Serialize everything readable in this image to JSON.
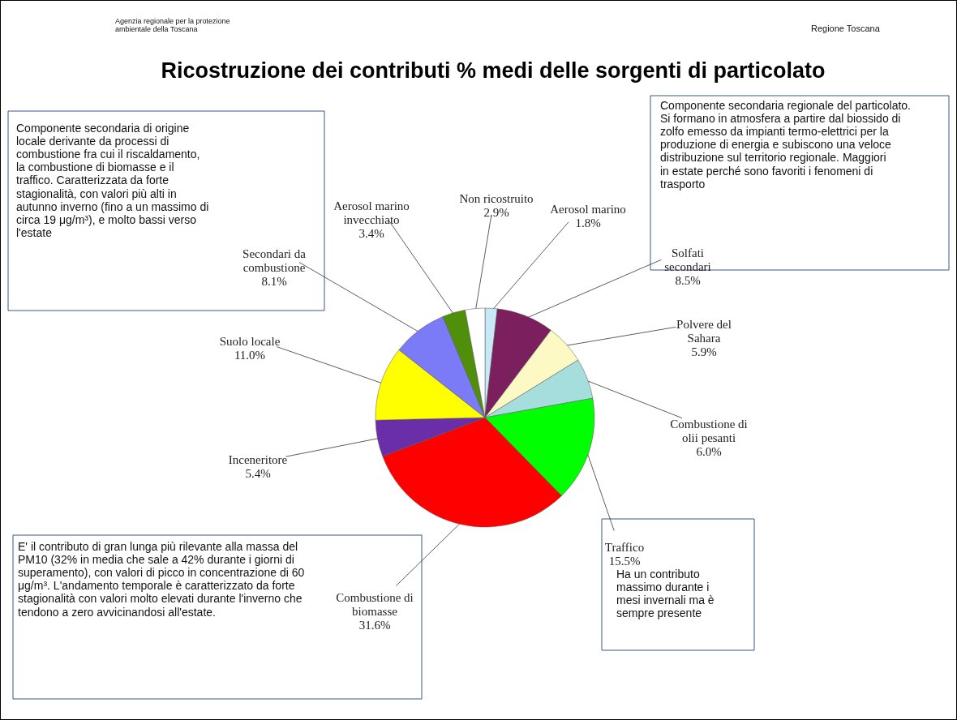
{
  "chart_data": {
    "type": "pie",
    "title": "Ricostruzione dei contributi % medi delle sorgenti di particolato",
    "categories": [
      "Aerosol marino",
      "Solfati secondari",
      "Polvere del Sahara",
      "Combustione di olii pesanti",
      "Traffico",
      "Combustione di biomasse",
      "Inceneritore",
      "Suolo locale",
      "Secondari da combustione",
      "Aerosol marino invecchiato",
      "Non ricostruito"
    ],
    "values": [
      1.8,
      8.5,
      5.9,
      6.0,
      15.5,
      31.6,
      5.4,
      11.0,
      8.1,
      3.4,
      2.9
    ],
    "value_labels": [
      "1.8%",
      "8.5%",
      "5.9%",
      "6.0%",
      "15.5%",
      "31.6%",
      "5.4%",
      "11.0%",
      "8.1%",
      "3.4%",
      "2.9%"
    ],
    "colors": [
      "#c6e9f5",
      "#7b1f5e",
      "#fdf9c4",
      "#a6dede",
      "#00ff00",
      "#ff0000",
      "#6a2fa8",
      "#ffff00",
      "#7b7bf7",
      "#4f8f0a",
      "#ffffff"
    ],
    "annotations": [
      "Componente secondaria di origine locale derivante da processi di combustione fra cui il riscaldamento, la combustione di biomasse e il traffico. Caratterizzata da forte stagionalità, con valori più alti in autunno inverno (fino a un massimo di circa 19 μg/m³), e molto bassi verso l'estate",
      "Componente secondaria regionale del particolato. Si formano in atmosfera a partire dal biossido di zolfo emesso da impianti termo-elettrici per la produzione di energia e subiscono una veloce distribuzione sul territorio regionale. Maggiori in estate perché sono favoriti i fenomeni di trasporto",
      "E' il contributo di gran lunga più rilevante alla massa del PM10 (32% in media che sale a 42% durante i giorni di superamento), con valori di picco in concentrazione di 60 μg/m³. L'andamento temporale è caratterizzato da forte stagionalità con valori molto elevati durante l'inverno che tendono a zero avvicinandosi all'estate.",
      "Ha un contributo massimo durante i mesi invernali ma è sempre presente",
      "Agenzia regionale per la protezione ambientale della Toscana",
      "Regione Toscana"
    ]
  }
}
